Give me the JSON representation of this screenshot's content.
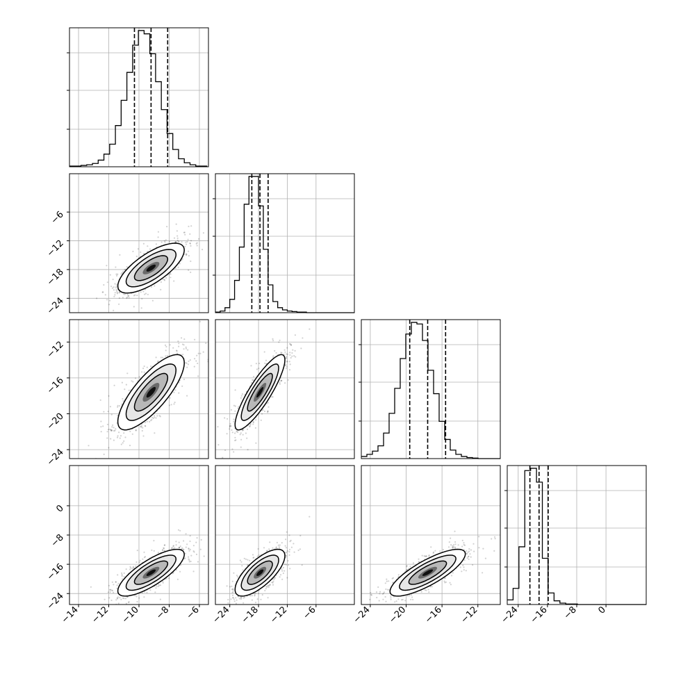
{
  "chart_data": {
    "type": "corner",
    "parameters": 4,
    "ranges": [
      [
        -14.6,
        -5.4
      ],
      [
        -27.0,
        2.0
      ],
      [
        -25.0,
        -9.5
      ],
      [
        -27.0,
        11.0
      ]
    ],
    "ticks": [
      [
        -14,
        -12,
        -10,
        -8,
        -6
      ],
      [
        -24,
        -18,
        -12,
        -6
      ],
      [
        -24,
        -20,
        -16,
        -12
      ],
      [
        -24,
        -16,
        -8,
        0
      ]
    ],
    "tick_labels": [
      [
        "−14",
        "−12",
        "−10",
        "−8",
        "−6"
      ],
      [
        "−24",
        "−18",
        "−12",
        "−6"
      ],
      [
        "−24",
        "−20",
        "−16",
        "−12"
      ],
      [
        "−24",
        "−16",
        "−8",
        "0"
      ]
    ],
    "quantiles": [
      [
        -10.3,
        -9.2,
        -8.1
      ],
      [
        -19.4,
        -17.7,
        -16.0
      ],
      [
        -19.6,
        -17.6,
        -15.6
      ],
      [
        -20.8,
        -18.3,
        -15.8
      ]
    ],
    "histograms": [
      {
        "edges_from": -14.6,
        "bin": 0.38,
        "counts": [
          1,
          1,
          2,
          3,
          5,
          10,
          19,
          34,
          62,
          100,
          142,
          183,
          205,
          200,
          170,
          128,
          86,
          50,
          26,
          12,
          6,
          3,
          1,
          1
        ]
      },
      {
        "edges_from": -27.0,
        "bin": 1.0,
        "counts": [
          1,
          3,
          9,
          24,
          58,
          118,
          195,
          245,
          245,
          192,
          114,
          50,
          20,
          9,
          5,
          3,
          2,
          1,
          1,
          0,
          0,
          0,
          0,
          0,
          0,
          0,
          0,
          0,
          0
        ]
      },
      {
        "edges_from": -25.0,
        "bin": 0.62,
        "counts": [
          4,
          8,
          14,
          24,
          48,
          85,
          132,
          188,
          234,
          256,
          253,
          222,
          166,
          122,
          70,
          36,
          16,
          8,
          4,
          2,
          1,
          0,
          0,
          0,
          0
        ]
      },
      {
        "edges_from": -27.0,
        "bin": 1.6,
        "counts": [
          10,
          35,
          125,
          290,
          295,
          265,
          100,
          25,
          8,
          3,
          1,
          1,
          0,
          0,
          0,
          0,
          0,
          0,
          0,
          0,
          0,
          0,
          0,
          0
        ]
      }
    ],
    "pairs": [
      {
        "x": 0,
        "y": 1,
        "mean": [
          -9.2,
          -17.7
        ],
        "sd": [
          1.1,
          2.6
        ],
        "rho": 0.72
      },
      {
        "x": 0,
        "y": 2,
        "mean": [
          -9.2,
          -17.6
        ],
        "sd": [
          1.1,
          2.1
        ],
        "rho": 0.78
      },
      {
        "x": 1,
        "y": 2,
        "mean": [
          -17.7,
          -17.6
        ],
        "sd": [
          2.6,
          2.1
        ],
        "rho": 0.86
      },
      {
        "x": 0,
        "y": 3,
        "mean": [
          -9.2,
          -18.3
        ],
        "sd": [
          1.1,
          3.2
        ],
        "rho": 0.78
      },
      {
        "x": 1,
        "y": 3,
        "mean": [
          -17.7,
          -18.3
        ],
        "sd": [
          2.6,
          3.2
        ],
        "rho": 0.72
      },
      {
        "x": 2,
        "y": 3,
        "mean": [
          -17.6,
          -18.3
        ],
        "sd": [
          2.1,
          3.2
        ],
        "rho": 0.8
      }
    ],
    "contour_levels_sigma": [
      0.5,
      1.0,
      1.5,
      2.0
    ],
    "grid": true,
    "title": "",
    "axis_labels": []
  }
}
